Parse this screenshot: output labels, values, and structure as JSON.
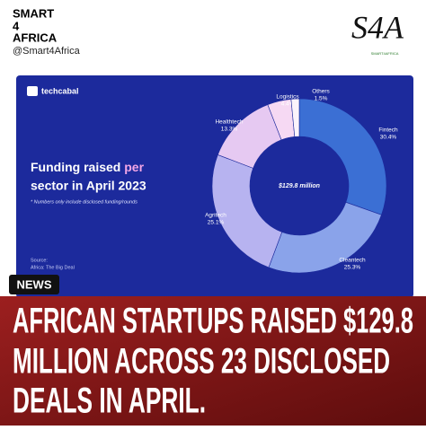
{
  "header": {
    "brand": [
      "SMART",
      "4",
      "AFRICA"
    ],
    "handle": "@Smart4Africa",
    "logo": "S4A",
    "logo_caption": "SMART4AFRICA"
  },
  "card": {
    "publisher": "techcabal",
    "title_parts": [
      "Funding raised ",
      "per",
      " sector in April 2023"
    ],
    "note": "* Numbers only include disclosed funding/rounds",
    "source": [
      "Source:",
      "Africa: The Big Deal"
    ]
  },
  "chart_data": {
    "type": "donut",
    "center_label": "$129.8 million",
    "categories": [
      "Fintech",
      "Cleantech",
      "Agritech",
      "Healthtech",
      "Logistics",
      "Others"
    ],
    "values": [
      30.4,
      25.3,
      25.1,
      13.3,
      4.4,
      1.5
    ],
    "value_labels": [
      "30.4%",
      "25.3%",
      "25.1%",
      "13.3%",
      "4.4%",
      "1.5%"
    ],
    "colors": [
      "#3b6fd4",
      "#8aa3ea",
      "#b7b3f0",
      "#e6c9f2",
      "#f6d9f3",
      "#fbf3fb"
    ]
  },
  "badge": "NEWS",
  "headline": [
    "AFRICAN STARTUPS RAISED $129.8",
    "MILLION ACROSS 23 DISCLOSED",
    "DEALS IN APRIL."
  ]
}
